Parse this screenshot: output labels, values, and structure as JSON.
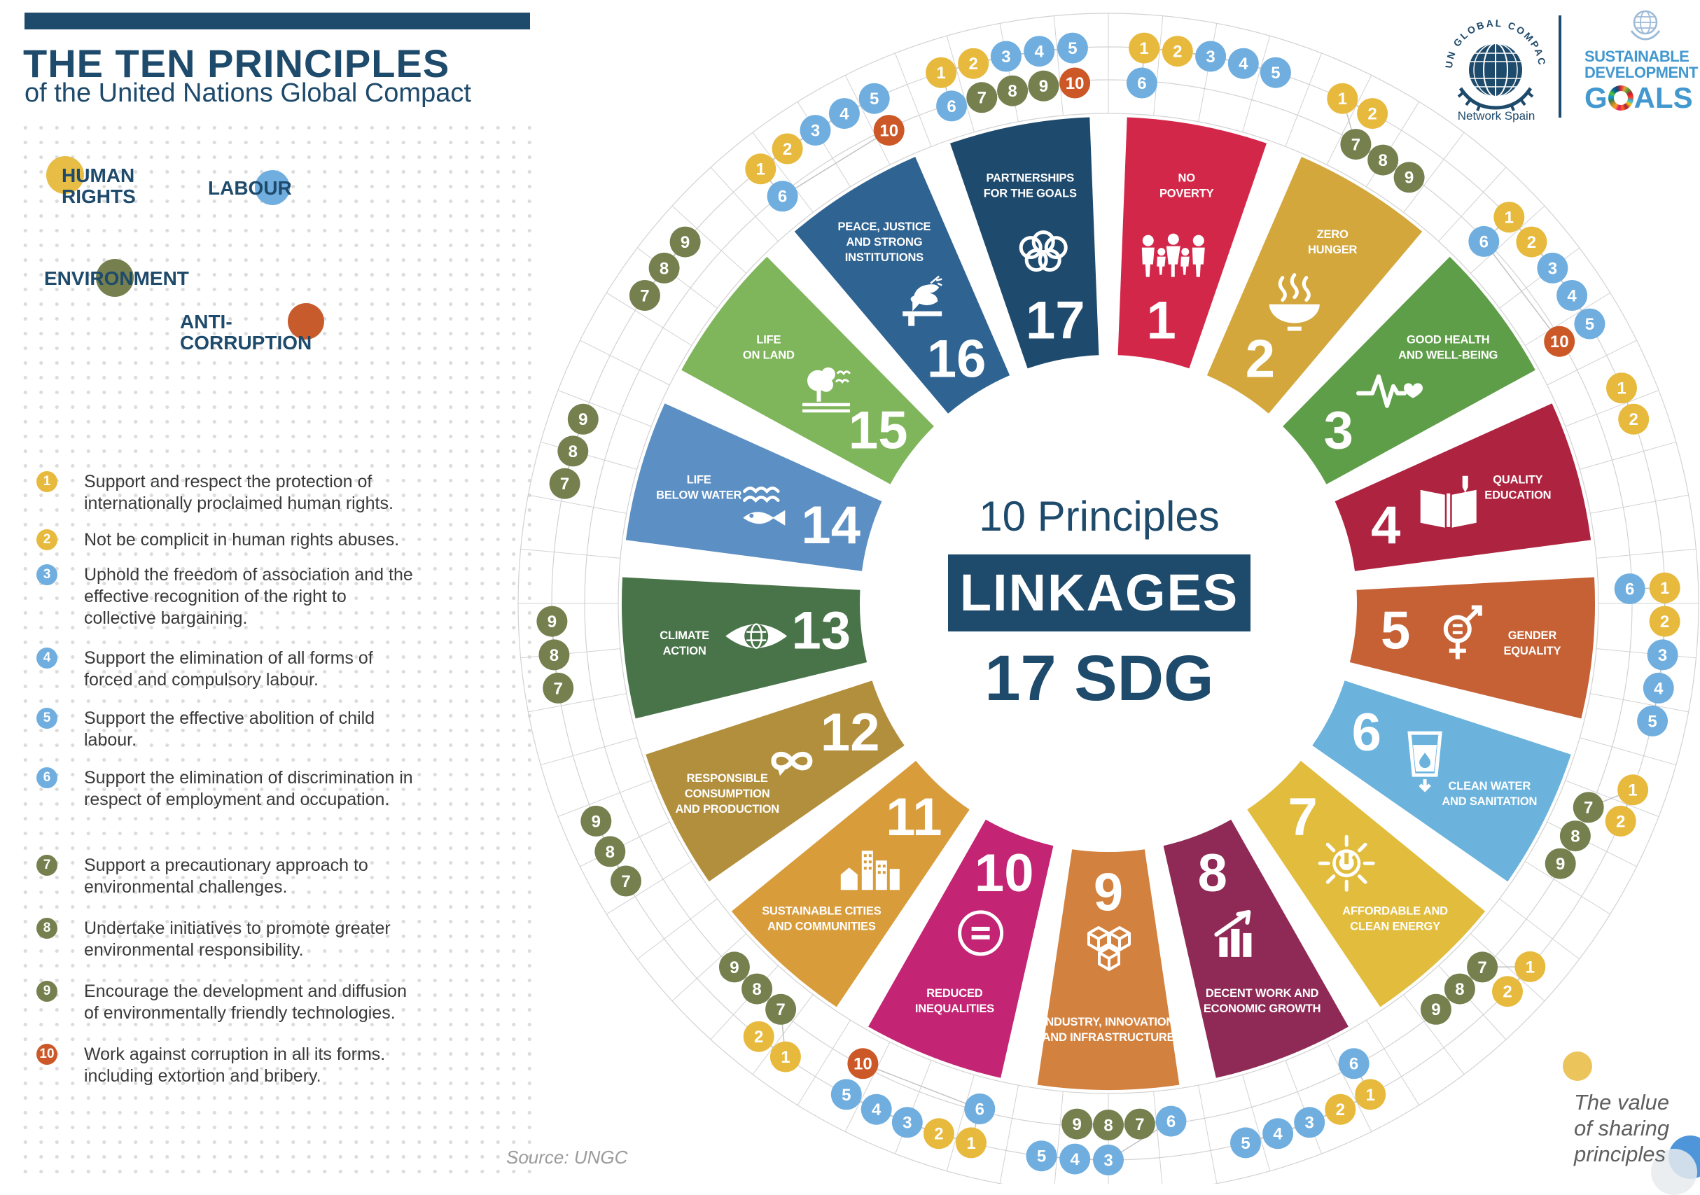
{
  "header": {
    "title": "THE TEN PRINCIPLES",
    "subtitle": "of the United Nations Global Compact"
  },
  "categories": [
    {
      "label": "HUMAN RIGHTS",
      "lines": [
        "HUMAN",
        "RIGHTS"
      ],
      "color": "#E7BD45"
    },
    {
      "label": "LABOUR",
      "lines": [
        "LABOUR"
      ],
      "color": "#6FAEDF"
    },
    {
      "label": "ENVIRONMENT",
      "lines": [
        "ENVIRONMENT"
      ],
      "color": "#75804E"
    },
    {
      "label": "ANTI-CORRUPTION",
      "lines": [
        "ANTI-CORRUPTION"
      ],
      "color": "#C75B2B"
    }
  ],
  "principle_colors": {
    "1": "#E7B93C",
    "2": "#E7B93C",
    "3": "#6FAEDF",
    "4": "#6FAEDF",
    "5": "#6FAEDF",
    "6": "#6FAEDF",
    "7": "#75804E",
    "8": "#75804E",
    "9": "#75804E",
    "10": "#CC5827"
  },
  "principles": [
    {
      "num": 1,
      "lines": [
        "Support and respect the protection of",
        "internationally proclaimed human rights."
      ]
    },
    {
      "num": 2,
      "lines": [
        "Not be complicit in human rights abuses."
      ]
    },
    {
      "num": 3,
      "lines": [
        "Uphold the freedom of association and the",
        "effective recognition of the right to",
        "collective bargaining."
      ]
    },
    {
      "num": 4,
      "lines": [
        "Support the elimination of all forms of",
        "forced and compulsory labour."
      ]
    },
    {
      "num": 5,
      "lines": [
        "Support the effective abolition of child",
        "labour."
      ]
    },
    {
      "num": 6,
      "lines": [
        "Support the elimination of discrimination in",
        "respect of employment and occupation."
      ]
    },
    {
      "num": 7,
      "lines": [
        "Support a precautionary approach to",
        "environmental challenges."
      ]
    },
    {
      "num": 8,
      "lines": [
        "Undertake initiatives to promote greater",
        "environmental responsibility."
      ]
    },
    {
      "num": 9,
      "lines": [
        "Encourage the development and diffusion",
        "of environmentally friendly technologies."
      ]
    },
    {
      "num": 10,
      "lines": [
        "Work against corruption in all its forms.",
        "including extortion and bribery."
      ]
    }
  ],
  "center": {
    "line1": "10 Principles",
    "line2": "LINKAGES",
    "line3": "17 SDG"
  },
  "sdgs": [
    {
      "num": 1,
      "color": "#D3274A",
      "lines": [
        "NO",
        "POVERTY"
      ],
      "icon": "family-icon",
      "principles": [
        1,
        2,
        3,
        4,
        5,
        6
      ]
    },
    {
      "num": 2,
      "color": "#D3A73C",
      "lines": [
        "ZERO",
        "HUNGER"
      ],
      "icon": "steaming-bowl-icon",
      "principles": [
        1,
        2,
        7,
        8,
        9
      ]
    },
    {
      "num": 3,
      "color": "#5F9E49",
      "lines": [
        "GOOD HEALTH",
        "AND WELL-BEING"
      ],
      "icon": "ecg-heart-icon",
      "principles": [
        1,
        2,
        3,
        4,
        5,
        6,
        10
      ]
    },
    {
      "num": 4,
      "color": "#AE2440",
      "lines": [
        "QUALITY",
        "EDUCATION"
      ],
      "icon": "book-pencil-icon",
      "principles": [
        1,
        2
      ]
    },
    {
      "num": 5,
      "color": "#C56135",
      "lines": [
        "GENDER",
        "EQUALITY"
      ],
      "icon": "gender-equality-icon",
      "principles": [
        1,
        2,
        3,
        4,
        5,
        6
      ]
    },
    {
      "num": 6,
      "color": "#6BB3DC",
      "lines": [
        "CLEAN WATER",
        "AND SANITATION"
      ],
      "icon": "water-glass-icon",
      "principles": [
        1,
        2,
        7,
        8,
        9
      ]
    },
    {
      "num": 7,
      "color": "#E2BC3D",
      "lines": [
        "AFFORDABLE AND",
        "CLEAN ENERGY"
      ],
      "icon": "sun-power-icon",
      "principles": [
        1,
        2,
        7,
        8,
        9
      ]
    },
    {
      "num": 8,
      "color": "#8E2A55",
      "lines": [
        "DECENT WORK AND",
        "ECONOMIC GROWTH"
      ],
      "icon": "growth-chart-icon",
      "principles": [
        1,
        2,
        3,
        4,
        5,
        6
      ]
    },
    {
      "num": 9,
      "color": "#D3813E",
      "lines": [
        "INDUSTRY, INNOVATION",
        "AND INFRASTRUCTURE"
      ],
      "icon": "cubes-icon",
      "principles": [
        3,
        4,
        5,
        6,
        7,
        8,
        9
      ]
    },
    {
      "num": 10,
      "color": "#C32473",
      "lines": [
        "REDUCED",
        "INEQUALITIES"
      ],
      "icon": "equals-circle-icon",
      "principles": [
        1,
        2,
        3,
        4,
        5,
        6,
        10
      ]
    },
    {
      "num": 11,
      "color": "#D99C3B",
      "lines": [
        "SUSTAINABLE CITIES",
        "AND COMMUNITIES"
      ],
      "icon": "city-icon",
      "principles": [
        1,
        2,
        7,
        8,
        9
      ]
    },
    {
      "num": 12,
      "color": "#B28F3D",
      "lines": [
        "RESPONSIBLE",
        "CONSUMPTION",
        "AND PRODUCTION"
      ],
      "icon": "infinity-icon",
      "principles": [
        7,
        8,
        9
      ]
    },
    {
      "num": 13,
      "color": "#49744A",
      "lines": [
        "CLIMATE",
        "ACTION"
      ],
      "icon": "eye-globe-icon",
      "principles": [
        7,
        8,
        9
      ]
    },
    {
      "num": 14,
      "color": "#5C8FC3",
      "lines": [
        "LIFE",
        "BELOW WATER"
      ],
      "icon": "fish-icon",
      "principles": [
        7,
        8,
        9
      ]
    },
    {
      "num": 15,
      "color": "#7FB55B",
      "lines": [
        "LIFE",
        "ON LAND"
      ],
      "icon": "tree-birds-icon",
      "principles": [
        7,
        8,
        9
      ]
    },
    {
      "num": 16,
      "color": "#2F6391",
      "lines": [
        "PEACE, JUSTICE",
        "AND STRONG",
        "INSTITUTIONS"
      ],
      "icon": "dove-gavel-icon",
      "principles": [
        1,
        2,
        3,
        4,
        5,
        6,
        10
      ]
    },
    {
      "num": 17,
      "color": "#1E4A6D",
      "lines": [
        "PARTNERSHIPS",
        "FOR THE GOALS"
      ],
      "icon": "rings-icon",
      "principles": [
        1,
        2,
        3,
        4,
        5,
        6,
        7,
        8,
        9,
        10
      ]
    }
  ],
  "source": "Source: UNGC",
  "tagline": {
    "lines": [
      "The value",
      "of sharing",
      "principles"
    ]
  },
  "logos": {
    "ungc_arc": "UN GLOBAL COMPACT",
    "ungc_sub": "Network Spain",
    "sdg_line1": "SUSTAINABLE",
    "sdg_line2": "DEVELOPMENT",
    "sdg_line3_g": "G",
    "sdg_line3_rest": "ALS"
  },
  "accent_colors": {
    "navy": "#1E4A6B",
    "grid": "#d2d2d2",
    "connector": "#c2c2c2"
  }
}
